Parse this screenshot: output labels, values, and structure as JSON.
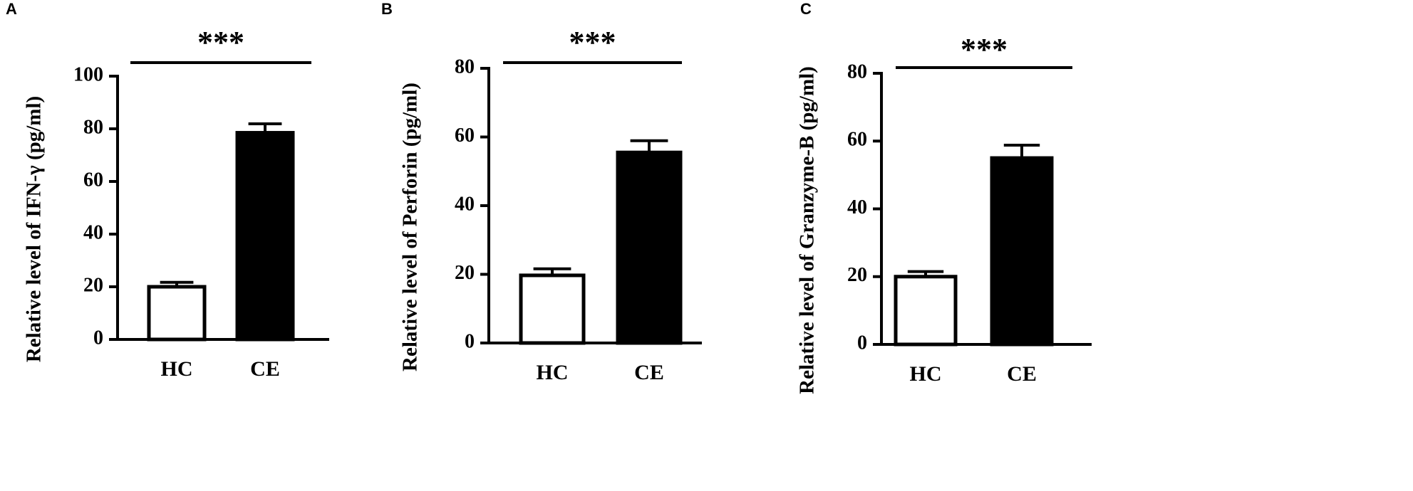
{
  "chart_data": [
    {
      "type": "bar",
      "panel_label": "A",
      "ylabel": "Relative level of IFN-γ (pg/ml)",
      "annotation": "***",
      "categories": [
        "HC",
        "CE"
      ],
      "values": [
        20,
        78.5
      ],
      "errors": [
        1.7,
        3.4
      ],
      "colors": [
        "#ffffff",
        "#000000"
      ],
      "ylim": [
        0,
        100
      ],
      "yticks": [
        0,
        20,
        40,
        60,
        80,
        100
      ]
    },
    {
      "type": "bar",
      "panel_label": "B",
      "ylabel": "Relative level of Perforin (pg/ml)",
      "annotation": "***",
      "categories": [
        "HC",
        "CE"
      ],
      "values": [
        19.7,
        55.5
      ],
      "errors": [
        1.9,
        3.4
      ],
      "colors": [
        "#ffffff",
        "#000000"
      ],
      "ylim": [
        0,
        80
      ],
      "yticks": [
        0,
        20,
        40,
        60,
        80
      ]
    },
    {
      "type": "bar",
      "panel_label": "C",
      "ylabel": "Relative level of Granzyme-B (pg/ml)",
      "annotation": "***",
      "categories": [
        "HC",
        "CE"
      ],
      "values": [
        20,
        55
      ],
      "errors": [
        1.5,
        3.8
      ],
      "colors": [
        "#ffffff",
        "#000000"
      ],
      "ylim": [
        0,
        80
      ],
      "yticks": [
        0,
        20,
        40,
        60,
        80
      ]
    }
  ]
}
